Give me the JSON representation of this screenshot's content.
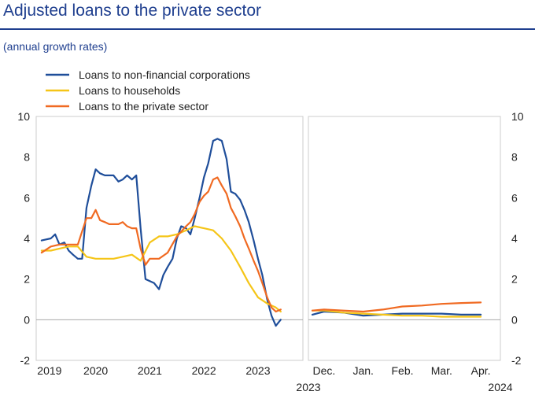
{
  "header": {
    "title": "Adjusted loans to the private sector",
    "subtitle": "(annual growth rates)"
  },
  "colors": {
    "nfc": "#1f4e9a",
    "households": "#f5c518",
    "private": "#f06a22",
    "axis": "#555555",
    "frame": "#cccccc"
  },
  "chart_data": {
    "type": "line",
    "title": "Adjusted loans to the private sector",
    "subtitle": "(annual growth rates)",
    "legend": {
      "placement": "top-left",
      "entries": [
        "Loans to non-financial corporations",
        "Loans to households",
        "Loans to the private sector"
      ]
    },
    "ylim": [
      -2,
      10
    ],
    "yticks": [
      "-2",
      "0",
      "2",
      "4",
      "6",
      "8",
      "10"
    ],
    "grid": false,
    "panels": [
      {
        "name": "monthly",
        "x_ticks": [
          "2019",
          "2020",
          "2021",
          "2022",
          "2023"
        ],
        "xlim": [
          2018.9,
          2023.83
        ],
        "series": [
          {
            "name": "Loans to non-financial corporations",
            "points": [
              [
                2019.0,
                3.9
              ],
              [
                2019.17,
                4.0
              ],
              [
                2019.25,
                4.2
              ],
              [
                2019.33,
                3.7
              ],
              [
                2019.42,
                3.8
              ],
              [
                2019.5,
                3.4
              ],
              [
                2019.58,
                3.2
              ],
              [
                2019.67,
                3.0
              ],
              [
                2019.75,
                3.0
              ],
              [
                2019.83,
                5.5
              ],
              [
                2019.92,
                6.6
              ],
              [
                2020.0,
                7.4
              ],
              [
                2020.08,
                7.2
              ],
              [
                2020.17,
                7.1
              ],
              [
                2020.25,
                7.1
              ],
              [
                2020.33,
                7.1
              ],
              [
                2020.42,
                6.8
              ],
              [
                2020.5,
                6.9
              ],
              [
                2020.58,
                7.1
              ],
              [
                2020.67,
                6.9
              ],
              [
                2020.75,
                7.1
              ],
              [
                2020.83,
                4.5
              ],
              [
                2020.92,
                2.0
              ],
              [
                2021.0,
                1.9
              ],
              [
                2021.08,
                1.8
              ],
              [
                2021.17,
                1.5
              ],
              [
                2021.25,
                2.2
              ],
              [
                2021.33,
                2.6
              ],
              [
                2021.42,
                3.0
              ],
              [
                2021.5,
                4.0
              ],
              [
                2021.58,
                4.6
              ],
              [
                2021.67,
                4.5
              ],
              [
                2021.75,
                4.2
              ],
              [
                2021.83,
                5.0
              ],
              [
                2021.92,
                6.0
              ],
              [
                2022.0,
                7.0
              ],
              [
                2022.08,
                7.7
              ],
              [
                2022.17,
                8.8
              ],
              [
                2022.25,
                8.9
              ],
              [
                2022.33,
                8.8
              ],
              [
                2022.42,
                7.9
              ],
              [
                2022.5,
                6.3
              ],
              [
                2022.58,
                6.2
              ],
              [
                2022.67,
                5.9
              ],
              [
                2022.75,
                5.4
              ],
              [
                2022.83,
                4.8
              ],
              [
                2022.92,
                3.9
              ],
              [
                2023.0,
                3.0
              ],
              [
                2023.08,
                2.2
              ],
              [
                2023.17,
                1.0
              ],
              [
                2023.25,
                0.2
              ],
              [
                2023.33,
                -0.3
              ],
              [
                2023.42,
                0.0
              ]
            ]
          },
          {
            "name": "Loans to households",
            "points": [
              [
                2019.0,
                3.4
              ],
              [
                2019.17,
                3.4
              ],
              [
                2019.33,
                3.5
              ],
              [
                2019.5,
                3.6
              ],
              [
                2019.67,
                3.6
              ],
              [
                2019.83,
                3.1
              ],
              [
                2020.0,
                3.0
              ],
              [
                2020.17,
                3.0
              ],
              [
                2020.33,
                3.0
              ],
              [
                2020.5,
                3.1
              ],
              [
                2020.67,
                3.2
              ],
              [
                2020.83,
                2.9
              ],
              [
                2021.0,
                3.8
              ],
              [
                2021.17,
                4.1
              ],
              [
                2021.33,
                4.1
              ],
              [
                2021.5,
                4.2
              ],
              [
                2021.67,
                4.4
              ],
              [
                2021.83,
                4.6
              ],
              [
                2022.0,
                4.5
              ],
              [
                2022.17,
                4.4
              ],
              [
                2022.33,
                4.0
              ],
              [
                2022.5,
                3.4
              ],
              [
                2022.67,
                2.6
              ],
              [
                2022.83,
                1.8
              ],
              [
                2023.0,
                1.1
              ],
              [
                2023.17,
                0.8
              ],
              [
                2023.33,
                0.6
              ],
              [
                2023.42,
                0.4
              ]
            ]
          },
          {
            "name": "Loans to the private sector",
            "points": [
              [
                2019.0,
                3.3
              ],
              [
                2019.17,
                3.6
              ],
              [
                2019.33,
                3.7
              ],
              [
                2019.5,
                3.7
              ],
              [
                2019.67,
                3.7
              ],
              [
                2019.83,
                5.0
              ],
              [
                2019.92,
                5.0
              ],
              [
                2020.0,
                5.4
              ],
              [
                2020.08,
                4.9
              ],
              [
                2020.17,
                4.8
              ],
              [
                2020.25,
                4.7
              ],
              [
                2020.33,
                4.7
              ],
              [
                2020.42,
                4.7
              ],
              [
                2020.5,
                4.8
              ],
              [
                2020.58,
                4.6
              ],
              [
                2020.67,
                4.5
              ],
              [
                2020.75,
                4.5
              ],
              [
                2020.83,
                3.5
              ],
              [
                2020.92,
                2.7
              ],
              [
                2021.0,
                3.0
              ],
              [
                2021.17,
                3.0
              ],
              [
                2021.33,
                3.3
              ],
              [
                2021.5,
                4.1
              ],
              [
                2021.67,
                4.6
              ],
              [
                2021.75,
                4.8
              ],
              [
                2021.83,
                5.2
              ],
              [
                2021.92,
                5.8
              ],
              [
                2022.0,
                6.1
              ],
              [
                2022.08,
                6.3
              ],
              [
                2022.17,
                6.9
              ],
              [
                2022.25,
                7.0
              ],
              [
                2022.33,
                6.6
              ],
              [
                2022.42,
                6.2
              ],
              [
                2022.5,
                5.5
              ],
              [
                2022.58,
                5.1
              ],
              [
                2022.67,
                4.6
              ],
              [
                2022.75,
                4.0
              ],
              [
                2022.83,
                3.5
              ],
              [
                2022.92,
                2.9
              ],
              [
                2023.0,
                2.4
              ],
              [
                2023.08,
                1.8
              ],
              [
                2023.17,
                1.1
              ],
              [
                2023.25,
                0.6
              ],
              [
                2023.33,
                0.4
              ],
              [
                2023.42,
                0.5
              ]
            ]
          }
        ]
      },
      {
        "name": "daily-recent",
        "x_ticks": [
          "Dec.",
          "Jan.",
          "Feb.",
          "Mar.",
          "Apr."
        ],
        "year_labels": [
          "2023",
          "2024"
        ],
        "xlim": [
          -0.4,
          4.5
        ],
        "series": [
          {
            "name": "Loans to non-financial corporations",
            "points": [
              [
                -0.3,
                0.25
              ],
              [
                0.0,
                0.4
              ],
              [
                0.5,
                0.35
              ],
              [
                1.0,
                0.2
              ],
              [
                1.5,
                0.25
              ],
              [
                2.0,
                0.3
              ],
              [
                2.5,
                0.3
              ],
              [
                3.0,
                0.3
              ],
              [
                3.5,
                0.25
              ],
              [
                4.0,
                0.25
              ]
            ]
          },
          {
            "name": "Loans to households",
            "points": [
              [
                -0.3,
                0.45
              ],
              [
                0.0,
                0.45
              ],
              [
                0.5,
                0.35
              ],
              [
                1.0,
                0.3
              ],
              [
                1.5,
                0.25
              ],
              [
                2.0,
                0.2
              ],
              [
                2.5,
                0.2
              ],
              [
                3.0,
                0.15
              ],
              [
                3.5,
                0.15
              ],
              [
                4.0,
                0.15
              ]
            ]
          },
          {
            "name": "Loans to the private sector",
            "points": [
              [
                -0.3,
                0.45
              ],
              [
                0.0,
                0.5
              ],
              [
                0.5,
                0.45
              ],
              [
                1.0,
                0.4
              ],
              [
                1.5,
                0.5
              ],
              [
                2.0,
                0.65
              ],
              [
                2.5,
                0.7
              ],
              [
                3.0,
                0.78
              ],
              [
                3.5,
                0.82
              ],
              [
                4.0,
                0.85
              ]
            ]
          }
        ]
      }
    ]
  }
}
